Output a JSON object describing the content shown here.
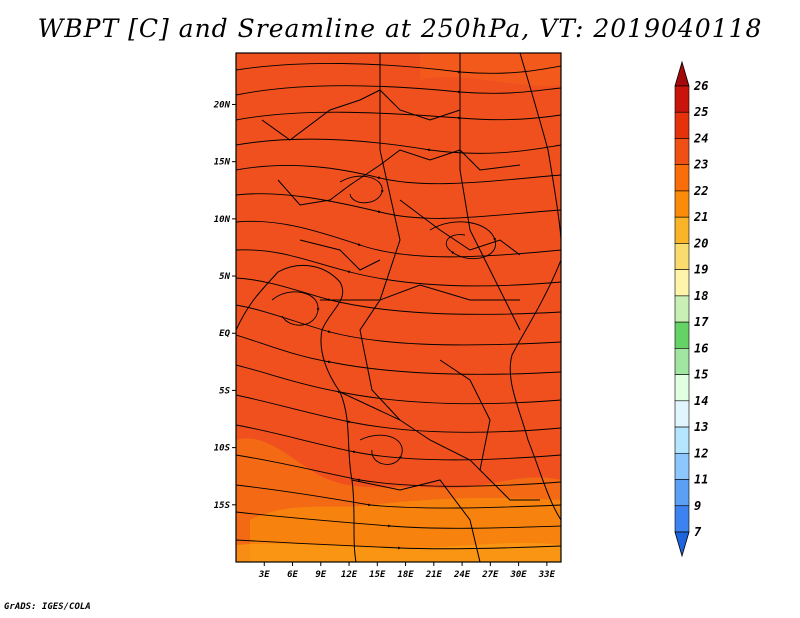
{
  "title": "WBPT [C] and Sreamline at 250hPa, VT: 2019040118",
  "credit": "GrADS: IGES/COLA",
  "map": {
    "lat_labels": [
      "20N",
      "15N",
      "10N",
      "5N",
      "EQ",
      "5S",
      "10S",
      "15S"
    ],
    "lon_labels": [
      "3E",
      "6E",
      "9E",
      "12E",
      "15E",
      "18E",
      "21E",
      "24E",
      "27E",
      "30E",
      "33E"
    ],
    "lat_range": [
      -20,
      24.5
    ],
    "lon_range": [
      0,
      34.5
    ],
    "field": "WBPT at 250hPa",
    "dominant_value_range": [
      22,
      24
    ]
  },
  "colorbar": {
    "labels": [
      "26",
      "25",
      "24",
      "23",
      "22",
      "21",
      "20",
      "19",
      "18",
      "17",
      "16",
      "15",
      "14",
      "13",
      "12",
      "11",
      "9",
      "7"
    ],
    "colors": [
      "#a50a0a",
      "#c8140a",
      "#e6320a",
      "#f05014",
      "#fa6e0a",
      "#fa8c0a",
      "#fab428",
      "#fadc6e",
      "#fff5aa",
      "#c8f0b4",
      "#64d264",
      "#a0e6a0",
      "#e1ffe1",
      "#e1f5ff",
      "#b4e6ff",
      "#8cc8ff",
      "#5aa0f5",
      "#3c82f0",
      "#1e64dc"
    ]
  }
}
